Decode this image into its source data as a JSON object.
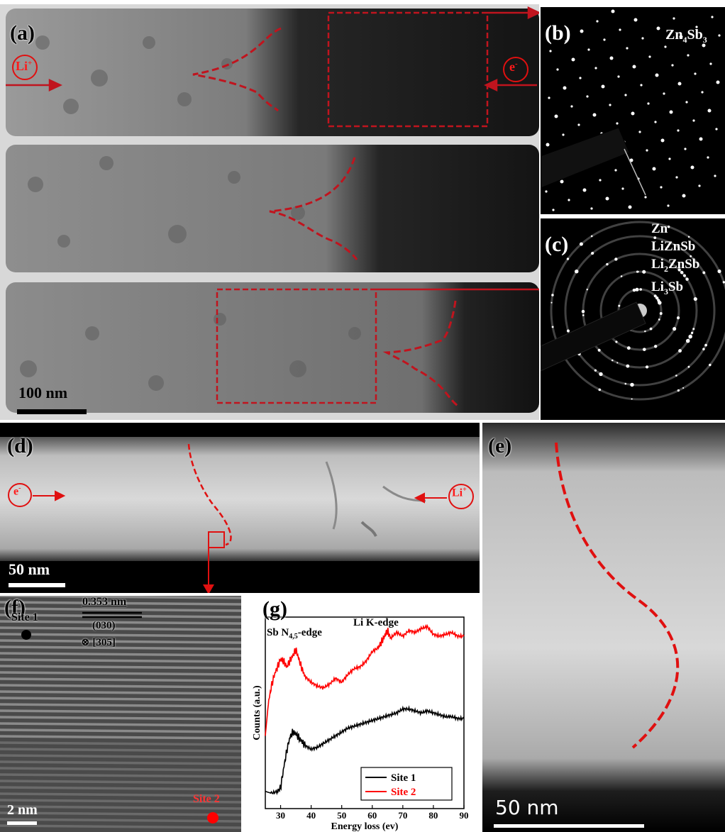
{
  "panels": {
    "a": {
      "label": "(a)",
      "scalebar": "100 nm",
      "li_ion": "Li",
      "li_sup": "+",
      "electron": "e",
      "electron_sup": "-"
    },
    "b": {
      "label": "(b)",
      "phase_base": "Zn",
      "phase_sub1": "4",
      "phase_mid": "Sb",
      "phase_sub2": "3"
    },
    "c": {
      "label": "(c)",
      "phases": [
        "Zn",
        "LiZnSb",
        "Li2ZnSb",
        "Li3Sb"
      ],
      "phase_line3_a": "Li",
      "phase_line3_sub": "2",
      "phase_line3_b": "ZnSb",
      "phase_line4_a": "Li",
      "phase_line4_sub": "3",
      "phase_line4_b": "Sb"
    },
    "d": {
      "label": "(d)",
      "scalebar": "50 nm",
      "electron": "e",
      "electron_sup": "-",
      "li_ion": "Li",
      "li_sup": "+"
    },
    "e": {
      "label": "(e)",
      "scalebar": "50 nm"
    },
    "f": {
      "label": "(f)",
      "site1": "Site 1",
      "site2": "Site 2",
      "d_spacing": "0.353 nm",
      "plane": "(030)",
      "zone_axis": "⊗ [305]",
      "scalebar": "2 nm"
    },
    "g": {
      "label": "(g)",
      "sb_edge_a": "Sb N",
      "sb_edge_sub": "4,5",
      "sb_edge_b": "-edge",
      "li_edge": "Li K-edge"
    }
  },
  "colors": {
    "red": "#e01010",
    "dash_red": "#c0141e"
  },
  "chart_data": {
    "type": "line",
    "xlabel": "Energy loss (ev)",
    "ylabel": "Counts (a.u.)",
    "xlim": [
      25,
      90
    ],
    "xticks": [
      30,
      40,
      50,
      60,
      70,
      80,
      90
    ],
    "ylim": [
      0,
      1
    ],
    "legend_position": "bottom-right",
    "series": [
      {
        "name": "Site 1",
        "color": "#000000",
        "x": [
          25,
          27,
          29,
          30,
          31,
          32,
          33,
          34,
          35,
          36,
          37,
          38,
          40,
          42,
          44,
          46,
          48,
          50,
          52,
          54,
          56,
          58,
          60,
          62,
          64,
          66,
          68,
          70,
          72,
          74,
          76,
          78,
          80,
          82,
          84,
          86,
          88,
          90
        ],
        "y": [
          0.09,
          0.08,
          0.09,
          0.11,
          0.21,
          0.3,
          0.37,
          0.4,
          0.39,
          0.37,
          0.35,
          0.33,
          0.31,
          0.32,
          0.34,
          0.36,
          0.38,
          0.4,
          0.42,
          0.43,
          0.44,
          0.45,
          0.46,
          0.47,
          0.48,
          0.49,
          0.5,
          0.52,
          0.52,
          0.51,
          0.5,
          0.51,
          0.5,
          0.49,
          0.48,
          0.48,
          0.47,
          0.47
        ]
      },
      {
        "name": "Site 2",
        "color": "#ff0000",
        "x": [
          25,
          26,
          27,
          28,
          29,
          30,
          31,
          32,
          33,
          34,
          35,
          36,
          37,
          38,
          40,
          42,
          44,
          46,
          48,
          50,
          52,
          54,
          56,
          58,
          60,
          62,
          63,
          64,
          65,
          66,
          68,
          70,
          72,
          74,
          76,
          78,
          80,
          82,
          84,
          86,
          88,
          90
        ],
        "y": [
          0.38,
          0.55,
          0.64,
          0.7,
          0.74,
          0.78,
          0.77,
          0.74,
          0.77,
          0.8,
          0.83,
          0.78,
          0.73,
          0.69,
          0.66,
          0.64,
          0.63,
          0.65,
          0.68,
          0.66,
          0.7,
          0.73,
          0.74,
          0.77,
          0.82,
          0.84,
          0.87,
          0.9,
          0.93,
          0.89,
          0.92,
          0.9,
          0.93,
          0.92,
          0.94,
          0.95,
          0.91,
          0.9,
          0.91,
          0.92,
          0.9,
          0.9
        ]
      }
    ]
  }
}
